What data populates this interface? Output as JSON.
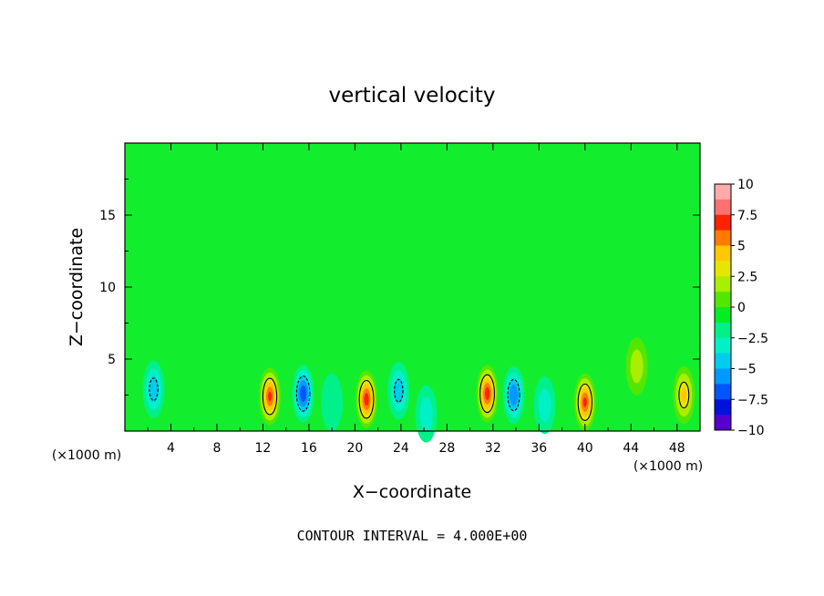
{
  "chart_data": {
    "type": "heatmap",
    "title": "vertical velocity",
    "xlabel": "X−coordinate",
    "ylabel": "Z−coordinate",
    "x_unit_label": "(×1000 m)",
    "xlim": [
      0,
      50
    ],
    "ylim": [
      0,
      20
    ],
    "x_ticks": [
      "4",
      "8",
      "12",
      "16",
      "20",
      "24",
      "28",
      "32",
      "36",
      "40",
      "44",
      "48"
    ],
    "y_ticks": [
      "5",
      "10",
      "15"
    ],
    "colorbar": {
      "ticks": [
        "10",
        "7.5",
        "5",
        "2.5",
        "0",
        "−2.5",
        "−5",
        "−7.5",
        "−10"
      ],
      "colors": [
        "#ffaaaa",
        "#ff7070",
        "#ff2200",
        "#ff7a00",
        "#ffc800",
        "#e6e600",
        "#aaee00",
        "#55e600",
        "#00ee22",
        "#00f08a",
        "#00f0c8",
        "#00ccee",
        "#0099ff",
        "#0055ff",
        "#0011dd",
        "#5500cc"
      ]
    },
    "features": [
      {
        "x": 12.6,
        "z": 2.4,
        "w": 7.0
      },
      {
        "x": 21.0,
        "z": 2.2,
        "w": 7.5
      },
      {
        "x": 31.5,
        "z": 2.6,
        "w": 7.5
      },
      {
        "x": 40.0,
        "z": 2.0,
        "w": 7.0
      },
      {
        "x": 48.6,
        "z": 2.5,
        "w": 4.5
      },
      {
        "x": 44.5,
        "z": 4.5,
        "w": 2.5
      },
      {
        "x": 33.8,
        "z": 2.5,
        "w": -5.5
      },
      {
        "x": 15.5,
        "z": 2.6,
        "w": -6.5
      },
      {
        "x": 2.5,
        "z": 2.9,
        "w": -4.0
      },
      {
        "x": 23.8,
        "z": 2.8,
        "w": -4.0
      },
      {
        "x": 26.2,
        "z": 1.2,
        "w": -2.5
      },
      {
        "x": 36.5,
        "z": 1.8,
        "w": -2.5
      },
      {
        "x": 18.0,
        "z": 2.0,
        "w": -1.5
      }
    ],
    "footer": "CONTOUR INTERVAL = 4.000E+00"
  }
}
